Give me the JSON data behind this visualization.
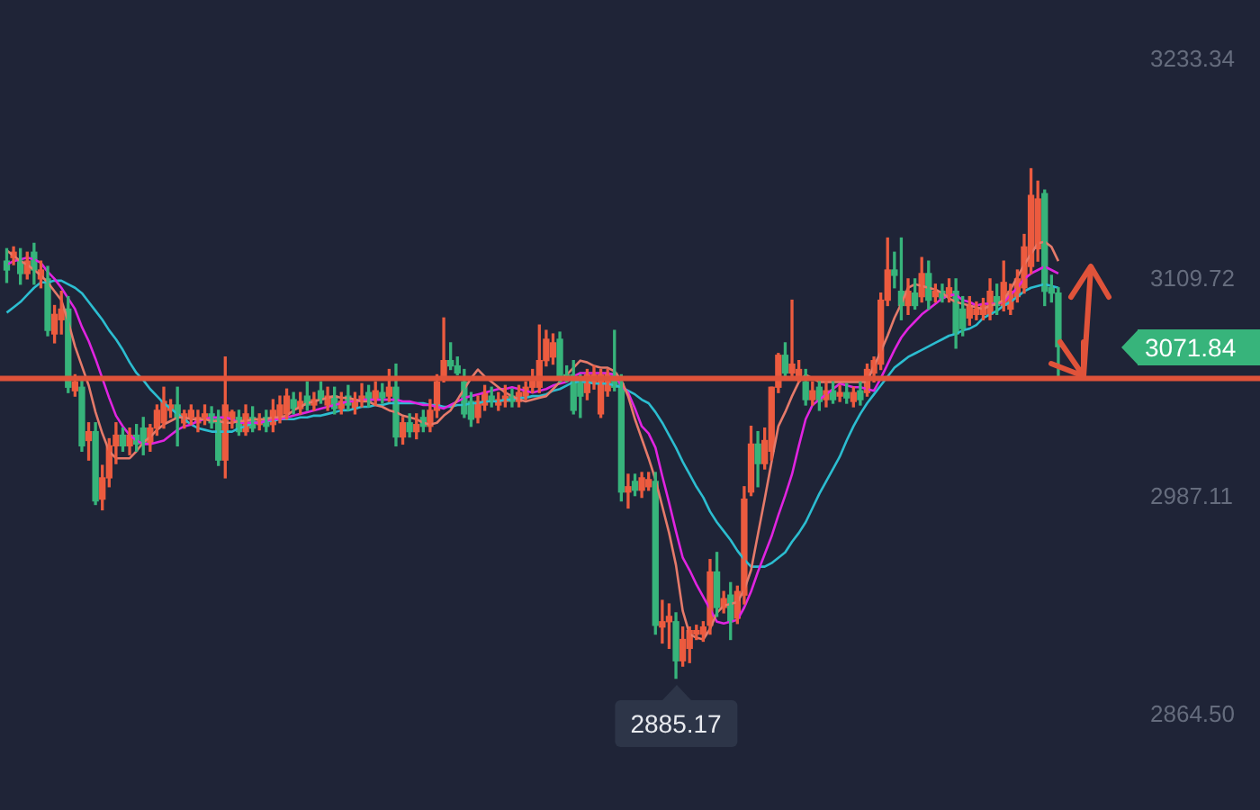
{
  "chart_data": {
    "type": "candlestick",
    "categories": [
      null,
      null,
      null,
      null,
      null,
      null,
      null,
      null,
      null,
      null,
      null,
      null,
      null,
      null,
      null,
      null,
      null,
      null,
      null,
      null,
      null,
      null,
      null,
      null,
      null,
      null,
      null,
      null,
      null,
      null,
      null,
      null,
      null,
      null,
      null,
      null,
      null,
      null,
      null,
      null,
      null,
      null,
      null,
      null,
      null,
      null,
      null,
      null,
      null,
      null,
      null,
      null,
      null,
      null,
      null,
      null,
      null,
      null,
      null,
      null,
      null,
      null,
      null,
      null,
      null,
      null,
      null,
      null,
      null,
      null,
      null,
      null,
      null,
      null,
      null,
      null,
      null,
      null,
      null,
      null,
      null,
      null,
      null,
      null,
      null,
      null,
      null,
      null,
      null,
      null,
      null,
      null,
      null,
      null,
      null,
      null,
      null,
      null,
      null,
      null,
      null,
      null,
      null,
      null,
      null,
      null,
      null,
      null,
      null,
      null,
      null,
      null,
      null,
      null,
      null,
      null,
      null,
      null,
      null,
      null,
      null,
      null,
      null,
      null,
      null,
      null,
      null,
      null,
      null,
      null,
      null,
      null,
      null,
      null,
      null,
      null,
      null,
      null,
      null,
      null,
      null,
      null,
      null,
      null,
      null,
      null,
      null,
      null,
      null,
      null,
      null,
      null,
      null,
      null,
      null
    ],
    "ohlc": [
      [
        3120,
        3127,
        3108,
        3115
      ],
      [
        3122,
        3128,
        3118,
        3125
      ],
      [
        3120,
        3127,
        3107,
        3113
      ],
      [
        3113,
        3125,
        3110,
        3120
      ],
      [
        3125,
        3130,
        3107,
        3115
      ],
      [
        3110,
        3120,
        3105,
        3115
      ],
      [
        3110,
        3117,
        3078,
        3081
      ],
      [
        3079,
        3095,
        3074,
        3090
      ],
      [
        3087,
        3103,
        3079,
        3093
      ],
      [
        3093,
        3100,
        3046,
        3049
      ],
      [
        3047,
        3056,
        3044,
        3052
      ],
      [
        3049,
        3054,
        3013,
        3016
      ],
      [
        3019,
        3029,
        3008,
        3024
      ],
      [
        3024,
        3029,
        2983,
        2985
      ],
      [
        2986,
        3005,
        2980,
        2998
      ],
      [
        2998,
        3020,
        2993,
        3016
      ],
      [
        3016,
        3029,
        3006,
        3022
      ],
      [
        3022,
        3026,
        3013,
        3016
      ],
      [
        3016,
        3026,
        3011,
        3022
      ],
      [
        3022,
        3028,
        3013,
        3017
      ],
      [
        3026,
        3032,
        3011,
        3018
      ],
      [
        3018,
        3028,
        3013,
        3026
      ],
      [
        3026,
        3039,
        3022,
        3036
      ],
      [
        3029,
        3049,
        3026,
        3041
      ],
      [
        3036,
        3042,
        3032,
        3039
      ],
      [
        3039,
        3049,
        3016,
        3032
      ],
      [
        3029,
        3036,
        3026,
        3034
      ],
      [
        3032,
        3039,
        3028,
        3036
      ],
      [
        3029,
        3036,
        3024,
        3032
      ],
      [
        3032,
        3039,
        3028,
        3034
      ],
      [
        3034,
        3038,
        3026,
        3029
      ],
      [
        3031,
        3036,
        3005,
        3008
      ],
      [
        3008,
        3066,
        2998,
        3039
      ],
      [
        3031,
        3036,
        3026,
        3035
      ],
      [
        3032,
        3036,
        3022,
        3024
      ],
      [
        3024,
        3039,
        3022,
        3034
      ],
      [
        3032,
        3038,
        3024,
        3026
      ],
      [
        3028,
        3034,
        3025,
        3030
      ],
      [
        3032,
        3036,
        3024,
        3027
      ],
      [
        3028,
        3042,
        3024,
        3036
      ],
      [
        3032,
        3044,
        3029,
        3039
      ],
      [
        3034,
        3048,
        3031,
        3044
      ],
      [
        3042,
        3046,
        3034,
        3037
      ],
      [
        3037,
        3046,
        3034,
        3041
      ],
      [
        3044,
        3052,
        3036,
        3039
      ],
      [
        3039,
        3046,
        3036,
        3042
      ],
      [
        3047,
        3052,
        3040,
        3042
      ],
      [
        3039,
        3049,
        3036,
        3044
      ],
      [
        3044,
        3049,
        3034,
        3037
      ],
      [
        3037,
        3046,
        3034,
        3041
      ],
      [
        3044,
        3050,
        3036,
        3039
      ],
      [
        3037,
        3046,
        3034,
        3042
      ],
      [
        3041,
        3051,
        3038,
        3044
      ],
      [
        3046,
        3050,
        3038,
        3041
      ],
      [
        3042,
        3052,
        3039,
        3047
      ],
      [
        3046,
        3051,
        3040,
        3043
      ],
      [
        3044,
        3059,
        3041,
        3049
      ],
      [
        3049,
        3062,
        3016,
        3021
      ],
      [
        3021,
        3032,
        3017,
        3029
      ],
      [
        3029,
        3034,
        3021,
        3024
      ],
      [
        3024,
        3034,
        3020,
        3028
      ],
      [
        3032,
        3036,
        3024,
        3027
      ],
      [
        3027,
        3042,
        3024,
        3036
      ],
      [
        3036,
        3056,
        3032,
        3052
      ],
      [
        3054,
        3088,
        3052,
        3064
      ],
      [
        3064,
        3074,
        3059,
        3061
      ],
      [
        3061,
        3066,
        3056,
        3057
      ],
      [
        3052,
        3059,
        3032,
        3034
      ],
      [
        3041,
        3046,
        3027,
        3031
      ],
      [
        3032,
        3044,
        3029,
        3041
      ],
      [
        3039,
        3050,
        3036,
        3046
      ],
      [
        3044,
        3049,
        3038,
        3041
      ],
      [
        3039,
        3046,
        3036,
        3042
      ],
      [
        3041,
        3050,
        3038,
        3044
      ],
      [
        3044,
        3048,
        3038,
        3041
      ],
      [
        3041,
        3050,
        3038,
        3046
      ],
      [
        3044,
        3052,
        3042,
        3049
      ],
      [
        3049,
        3059,
        3046,
        3054
      ],
      [
        3049,
        3084,
        3046,
        3064
      ],
      [
        3064,
        3081,
        3061,
        3076
      ],
      [
        3066,
        3079,
        3062,
        3074
      ],
      [
        3076,
        3080,
        3052,
        3054
      ],
      [
        3056,
        3061,
        3052,
        3054
      ],
      [
        3056,
        3064,
        3034,
        3036
      ],
      [
        3051,
        3056,
        3032,
        3044
      ],
      [
        3046,
        3059,
        3042,
        3056
      ],
      [
        3051,
        3061,
        3048,
        3056
      ],
      [
        3034,
        3059,
        3032,
        3056
      ],
      [
        3047,
        3059,
        3044,
        3057
      ],
      [
        3057,
        3081,
        3047,
        3049
      ],
      [
        3051,
        3056,
        2985,
        2990
      ],
      [
        2990,
        3000,
        2981,
        2993
      ],
      [
        2996,
        3000,
        2988,
        2991
      ],
      [
        2991,
        3001,
        2987,
        2998
      ],
      [
        2993,
        3001,
        2991,
        2997
      ],
      [
        2996,
        3001,
        2910,
        2915
      ],
      [
        2914,
        2929,
        2905,
        2917
      ],
      [
        2917,
        2927,
        2902,
        2920
      ],
      [
        2917,
        2922,
        2885.17,
        2895
      ],
      [
        2895,
        2914,
        2892,
        2907
      ],
      [
        2902,
        2914,
        2894,
        2912
      ],
      [
        2910,
        2915,
        2907,
        2912
      ],
      [
        2910,
        2917,
        2906,
        2914
      ],
      [
        2915,
        2952,
        2910,
        2945
      ],
      [
        2945,
        2956,
        2920,
        2925
      ],
      [
        2925,
        2934,
        2922,
        2930
      ],
      [
        2932,
        2939,
        2907,
        2917
      ],
      [
        2919,
        2937,
        2916,
        2934
      ],
      [
        2932,
        2993,
        2927,
        2986
      ],
      [
        2990,
        3027,
        2988,
        3017
      ],
      [
        3017,
        3024,
        2993,
        3006
      ],
      [
        3006,
        3026,
        3003,
        3019
      ],
      [
        3013,
        3049,
        3008,
        3049
      ],
      [
        3049,
        3068,
        3046,
        3067
      ],
      [
        3067,
        3074,
        3054,
        3057
      ],
      [
        3057,
        3098,
        3054,
        3062
      ],
      [
        3054,
        3064,
        3052,
        3059
      ],
      [
        3052,
        3059,
        3039,
        3042
      ],
      [
        3042,
        3052,
        3039,
        3047
      ],
      [
        3049,
        3054,
        3036,
        3041
      ],
      [
        3042,
        3052,
        3038,
        3047
      ],
      [
        3047,
        3054,
        3040,
        3042
      ],
      [
        3044,
        3050,
        3041,
        3046
      ],
      [
        3046,
        3051,
        3040,
        3043
      ],
      [
        3041,
        3049,
        3038,
        3046
      ],
      [
        3047,
        3052,
        3039,
        3042
      ],
      [
        3046,
        3062,
        3044,
        3059
      ],
      [
        3057,
        3066,
        3052,
        3064
      ],
      [
        3062,
        3102,
        3059,
        3098
      ],
      [
        3098,
        3133,
        3095,
        3115
      ],
      [
        3115,
        3125,
        3105,
        3112
      ],
      [
        3103,
        3133,
        3087,
        3095
      ],
      [
        3095,
        3110,
        3090,
        3103
      ],
      [
        3102,
        3110,
        3093,
        3095
      ],
      [
        3100,
        3122,
        3097,
        3113
      ],
      [
        3113,
        3120,
        3093,
        3098
      ],
      [
        3100,
        3107,
        3097,
        3103
      ],
      [
        3103,
        3107,
        3097,
        3099
      ],
      [
        3100,
        3110,
        3097,
        3105
      ],
      [
        3103,
        3110,
        3071,
        3079
      ],
      [
        3093,
        3100,
        3078,
        3082
      ],
      [
        3088,
        3100,
        3084,
        3095
      ],
      [
        3090,
        3097,
        3087,
        3093
      ],
      [
        3090,
        3099,
        3087,
        3095
      ],
      [
        3090,
        3110,
        3087,
        3103
      ],
      [
        3100,
        3107,
        3090,
        3095
      ],
      [
        3095,
        3120,
        3092,
        3108
      ],
      [
        3093,
        3107,
        3090,
        3103
      ],
      [
        3100,
        3115,
        3097,
        3110
      ],
      [
        3105,
        3135,
        3102,
        3128
      ],
      [
        3117,
        3172,
        3113,
        3157
      ],
      [
        3127,
        3165,
        3120,
        3155
      ],
      [
        3158,
        3160,
        3095,
        3103
      ],
      [
        3105,
        3112,
        3097,
        3102
      ],
      [
        3102,
        3105,
        3054,
        3071.84
      ]
    ],
    "colors": [
      "#37b47b",
      "#ec5b3f",
      "#37b47b",
      "#ec5b3f",
      "#37b47b",
      "#ec5b3f",
      "#37b47b",
      "#ec5b3f",
      "#ec5b3f",
      "#37b47b",
      "#ec5b3f",
      "#37b47b",
      "#ec5b3f",
      "#37b47b",
      "#ec5b3f",
      "#ec5b3f",
      "#ec5b3f",
      "#37b47b",
      "#ec5b3f",
      "#37b47b",
      "#37b47b",
      "#ec5b3f",
      "#ec5b3f",
      "#ec5b3f",
      "#ec5b3f",
      "#37b47b",
      "#ec5b3f",
      "#ec5b3f",
      "#ec5b3f",
      "#ec5b3f",
      "#37b47b",
      "#37b47b",
      "#ec5b3f",
      "#ec5b3f",
      "#37b47b",
      "#ec5b3f",
      "#37b47b",
      "#ec5b3f",
      "#37b47b",
      "#ec5b3f",
      "#ec5b3f",
      "#ec5b3f",
      "#37b47b",
      "#ec5b3f",
      "#37b47b",
      "#ec5b3f",
      "#37b47b",
      "#ec5b3f",
      "#37b47b",
      "#ec5b3f",
      "#37b47b",
      "#ec5b3f",
      "#ec5b3f",
      "#37b47b",
      "#ec5b3f",
      "#37b47b",
      "#ec5b3f",
      "#37b47b",
      "#ec5b3f",
      "#37b47b",
      "#ec5b3f",
      "#37b47b",
      "#ec5b3f",
      "#ec5b3f",
      "#ec5b3f",
      "#37b47b",
      "#37b47b",
      "#37b47b",
      "#37b47b",
      "#ec5b3f",
      "#ec5b3f",
      "#37b47b",
      "#ec5b3f",
      "#ec5b3f",
      "#37b47b",
      "#ec5b3f",
      "#ec5b3f",
      "#ec5b3f",
      "#ec5b3f",
      "#ec5b3f",
      "#ec5b3f",
      "#37b47b",
      "#37b47b",
      "#37b47b",
      "#37b47b",
      "#ec5b3f",
      "#ec5b3f",
      "#ec5b3f",
      "#ec5b3f",
      "#37b47b",
      "#37b47b",
      "#ec5b3f",
      "#37b47b",
      "#ec5b3f",
      "#ec5b3f",
      "#37b47b",
      "#ec5b3f",
      "#ec5b3f",
      "#37b47b",
      "#ec5b3f",
      "#ec5b3f",
      "#ec5b3f",
      "#ec5b3f",
      "#ec5b3f",
      "#37b47b",
      "#ec5b3f",
      "#37b47b",
      "#ec5b3f",
      "#ec5b3f",
      "#ec5b3f",
      "#37b47b",
      "#ec5b3f",
      "#ec5b3f",
      "#ec5b3f",
      "#37b47b",
      "#ec5b3f",
      "#ec5b3f",
      "#37b47b",
      "#ec5b3f",
      "#37b47b",
      "#ec5b3f",
      "#37b47b",
      "#ec5b3f",
      "#37b47b",
      "#ec5b3f",
      "#37b47b",
      "#ec5b3f",
      "#ec5b3f",
      "#ec5b3f",
      "#ec5b3f",
      "#37b47b",
      "#37b47b",
      "#ec5b3f",
      "#37b47b",
      "#ec5b3f",
      "#37b47b",
      "#ec5b3f",
      "#37b47b",
      "#ec5b3f",
      "#37b47b",
      "#37b47b",
      "#ec5b3f",
      "#ec5b3f",
      "#ec5b3f",
      "#ec5b3f",
      "#37b47b",
      "#ec5b3f",
      "#ec5b3f",
      "#ec5b3f",
      "#ec5b3f",
      "#ec5b3f",
      "#ec5b3f",
      "#37b47b",
      "#37b47b",
      "#37b47b"
    ],
    "series": [
      {
        "type": "line",
        "color": "#e57a6a",
        "values": [
          3126,
          3123,
          3120,
          3118,
          3115,
          3112,
          3108,
          3103,
          3098,
          3086,
          3072,
          3061,
          3050,
          3035,
          3023,
          3013,
          3009,
          3009,
          3009,
          3013,
          3018,
          3021,
          3025,
          3028,
          3030,
          3032,
          3032,
          3031,
          3031,
          3031,
          3030,
          3030,
          3029,
          3029,
          3030,
          3030,
          3031,
          3031,
          3031,
          3032,
          3032,
          3033,
          3036,
          3038,
          3040,
          3041,
          3042,
          3043,
          3044,
          3043,
          3043,
          3042,
          3041,
          3041,
          3039,
          3038,
          3036,
          3035,
          3033,
          3032,
          3031,
          3029,
          3028,
          3029,
          3033,
          3036,
          3042,
          3048,
          3054,
          3059,
          3055,
          3052,
          3049,
          3046,
          3044,
          3042,
          3041,
          3042,
          3043,
          3044,
          3048,
          3052,
          3056,
          3060,
          3064,
          3063,
          3061,
          3060,
          3060,
          3058,
          3053,
          3044,
          3031,
          3020,
          3009,
          2997,
          2982,
          2967,
          2949,
          2923,
          2910,
          2908,
          2907,
          2913,
          2922,
          2926,
          2927,
          2928,
          2935,
          2946,
          2966,
          2986,
          3007,
          3027,
          3035,
          3044,
          3052,
          3056,
          3054,
          3052,
          3052,
          3052,
          3052,
          3052,
          3052,
          3052,
          3052,
          3061,
          3069,
          3078,
          3088,
          3096,
          3105,
          3107,
          3106,
          3105,
          3104,
          3102,
          3099,
          3097,
          3096,
          3095,
          3094,
          3093,
          3095,
          3096,
          3098,
          3104,
          3111,
          3118,
          3124,
          3130,
          3131,
          3128,
          3120
        ]
      },
      {
        "type": "line",
        "color": "#e024e0",
        "values": [
          3118,
          3120,
          3121,
          3122,
          3121,
          3119,
          3114,
          3110,
          3105,
          3099,
          3093,
          3083,
          3075,
          3065,
          3054,
          3043,
          3033,
          3027,
          3022,
          3019,
          3017,
          3017,
          3018,
          3019,
          3022,
          3025,
          3027,
          3028,
          3030,
          3031,
          3032,
          3032,
          3032,
          3031,
          3029,
          3029,
          3029,
          3029,
          3030,
          3031,
          3031,
          3032,
          3033,
          3034,
          3035,
          3036,
          3037,
          3038,
          3039,
          3040,
          3041,
          3041,
          3042,
          3042,
          3042,
          3042,
          3042,
          3042,
          3041,
          3041,
          3040,
          3039,
          3039,
          3038,
          3037,
          3039,
          3041,
          3043,
          3044,
          3045,
          3046,
          3047,
          3048,
          3048,
          3049,
          3048,
          3047,
          3046,
          3047,
          3048,
          3050,
          3051,
          3052,
          3055,
          3057,
          3057,
          3057,
          3057,
          3057,
          3056,
          3050,
          3046,
          3037,
          3027,
          3023,
          3015,
          2999,
          2984,
          2968,
          2953,
          2946,
          2938,
          2931,
          2924,
          2917,
          2916,
          2917,
          2918,
          2925,
          2934,
          2945,
          2955,
          2965,
          2977,
          2988,
          3000,
          3016,
          3031,
          3039,
          3042,
          3045,
          3048,
          3051,
          3050,
          3049,
          3049,
          3048,
          3047,
          3054,
          3062,
          3070,
          3077,
          3082,
          3086,
          3090,
          3093,
          3096,
          3099,
          3101,
          3101,
          3098,
          3097,
          3095,
          3096,
          3096,
          3096,
          3097,
          3101,
          3105,
          3110,
          3113,
          3115,
          3117,
          3115,
          3113
        ]
      },
      {
        "type": "line",
        "color": "#2cbdd0",
        "values": [
          3091,
          3094,
          3097,
          3101,
          3105,
          3108,
          3108,
          3109,
          3109,
          3107,
          3105,
          3102,
          3097,
          3092,
          3087,
          3081,
          3076,
          3070,
          3063,
          3057,
          3053,
          3048,
          3044,
          3040,
          3037,
          3034,
          3031,
          3028,
          3026,
          3025,
          3024,
          3024,
          3024,
          3024,
          3026,
          3027,
          3029,
          3029,
          3030,
          3030,
          3031,
          3031,
          3031,
          3032,
          3032,
          3033,
          3033,
          3034,
          3035,
          3036,
          3036,
          3037,
          3038,
          3038,
          3039,
          3039,
          3040,
          3040,
          3040,
          3040,
          3040,
          3040,
          3039,
          3039,
          3038,
          3038,
          3039,
          3039,
          3040,
          3040,
          3041,
          3041,
          3041,
          3042,
          3042,
          3043,
          3043,
          3044,
          3044,
          3045,
          3047,
          3048,
          3050,
          3052,
          3052,
          3052,
          3051,
          3051,
          3051,
          3050,
          3049,
          3047,
          3045,
          3042,
          3040,
          3035,
          3029,
          3022,
          3015,
          3007,
          3000,
          2993,
          2987,
          2979,
          2973,
          2968,
          2963,
          2957,
          2952,
          2948,
          2948,
          2948,
          2950,
          2953,
          2956,
          2962,
          2967,
          2973,
          2981,
          2989,
          2996,
          3003,
          3010,
          3019,
          3027,
          3034,
          3040,
          3045,
          3050,
          3055,
          3060,
          3063,
          3066,
          3068,
          3070,
          3072,
          3074,
          3076,
          3078,
          3079,
          3081,
          3082,
          3084,
          3088,
          3090,
          3092,
          3095,
          3097,
          3100,
          3103,
          3105,
          3106,
          3107,
          3106,
          3105
        ]
      }
    ],
    "ylim": [
      2811,
      3267
    ],
    "yticks": [
      3233.34,
      3109.72,
      2987.11,
      {
        "value": 2864.5,
        "label": "2864.50"
      }
    ],
    "tick_labels": "y",
    "ref_lines": [
      {
        "axis": "y",
        "value": 3054,
        "color": "#e0533a"
      }
    ],
    "annotations": [
      "3071.84",
      {
        "text": "2885.17",
        "y": 2885.17
      }
    ]
  }
}
